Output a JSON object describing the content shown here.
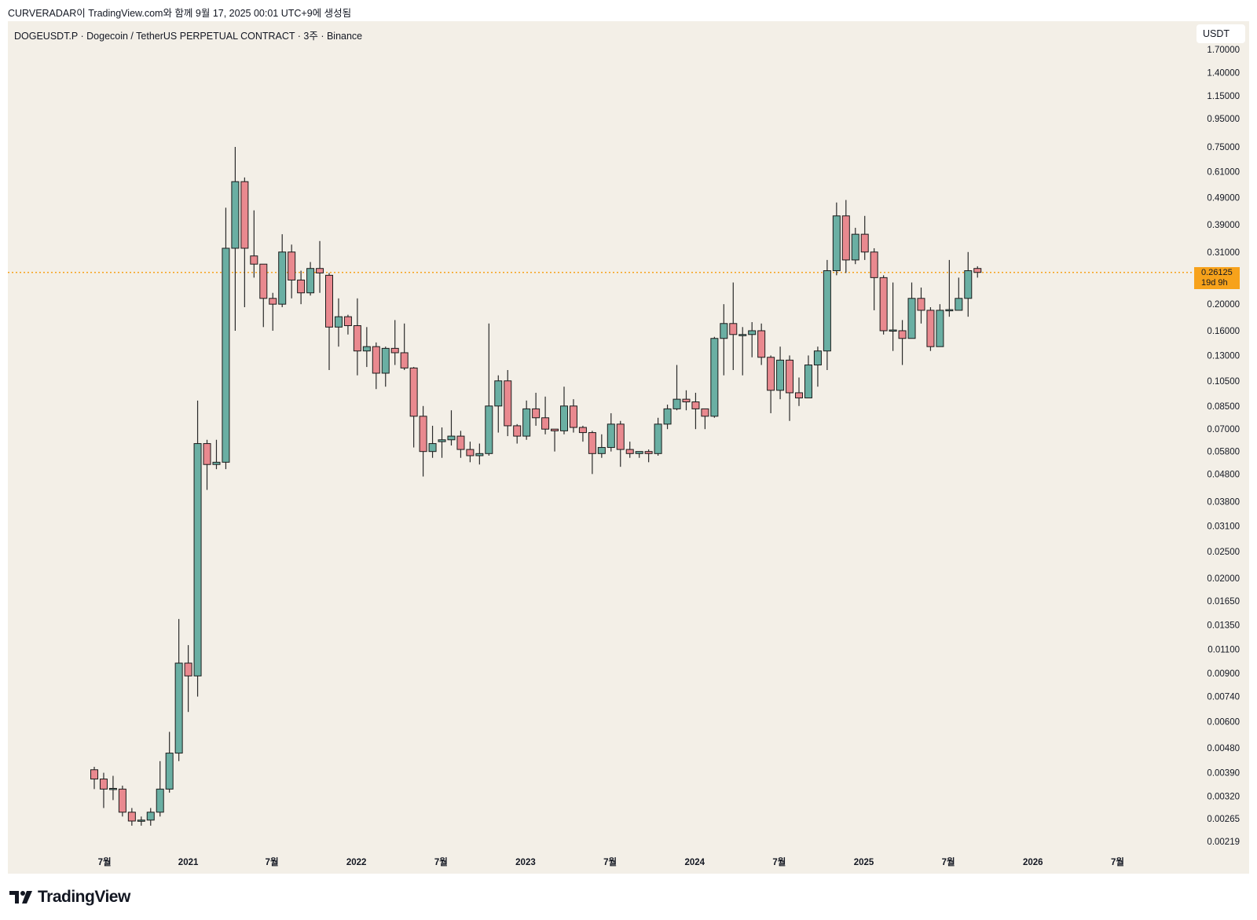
{
  "caption": "CURVERADAR이 TradingView.com와 함께 9월 17, 2025 00:01 UTC+9에 생성됨",
  "symbol_title": "DOGEUSDT.P · Dogecoin / TetherUS PERPETUAL CONTRACT · 3주 · Binance",
  "currency": "USDT",
  "last_price": "0.26125",
  "countdown": "19d 9h",
  "logo_text": "TradingView",
  "colors": {
    "up": "#6aafa3",
    "down": "#e9898f",
    "price_line": "#f7a21b",
    "background": "#f3efe7"
  },
  "chart_data": {
    "type": "candlestick",
    "scale": "log",
    "interval": "3주",
    "ylim": [
      0.00219,
      1.7
    ],
    "price_ticks": [
      "1.70000",
      "1.40000",
      "1.15000",
      "0.95000",
      "0.75000",
      "0.61000",
      "0.49000",
      "0.39000",
      "0.31000",
      "0.20000",
      "0.16000",
      "0.13000",
      "0.10500",
      "0.08500",
      "0.07000",
      "0.05800",
      "0.04800",
      "0.03800",
      "0.03100",
      "0.02500",
      "0.02000",
      "0.01650",
      "0.01350",
      "0.01100",
      "0.00900",
      "0.00740",
      "0.00600",
      "0.00480",
      "0.00390",
      "0.00320",
      "0.00265",
      "0.00219"
    ],
    "time_labels": [
      {
        "label": "7월",
        "bar": 1.1
      },
      {
        "label": "2021",
        "bar": 10.0
      },
      {
        "label": "7월",
        "bar": 18.9
      },
      {
        "label": "2022",
        "bar": 27.9
      },
      {
        "label": "7월",
        "bar": 36.9
      },
      {
        "label": "2023",
        "bar": 45.9
      },
      {
        "label": "7월",
        "bar": 54.9
      },
      {
        "label": "2024",
        "bar": 63.9
      },
      {
        "label": "7월",
        "bar": 72.9
      },
      {
        "label": "2025",
        "bar": 81.9
      },
      {
        "label": "7월",
        "bar": 90.9
      },
      {
        "label": "2026",
        "bar": 99.9
      },
      {
        "label": "7월",
        "bar": 108.9
      }
    ],
    "ohlc_fields": [
      "open",
      "high",
      "low",
      "close"
    ],
    "candles": [
      [
        0.004,
        0.0041,
        0.0034,
        0.0037
      ],
      [
        0.0037,
        0.0039,
        0.0029,
        0.0034
      ],
      [
        0.0034,
        0.0038,
        0.0031,
        0.00342
      ],
      [
        0.0034,
        0.0035,
        0.0027,
        0.0028
      ],
      [
        0.0028,
        0.0029,
        0.0025,
        0.0026
      ],
      [
        0.0026,
        0.0027,
        0.0025,
        0.00262
      ],
      [
        0.00262,
        0.0029,
        0.0025,
        0.0028
      ],
      [
        0.0028,
        0.0043,
        0.0027,
        0.0034
      ],
      [
        0.0034,
        0.0055,
        0.0033,
        0.0046
      ],
      [
        0.0046,
        0.0142,
        0.0043,
        0.0098
      ],
      [
        0.0098,
        0.0114,
        0.0065,
        0.0088
      ],
      [
        0.0088,
        0.089,
        0.0074,
        0.062
      ],
      [
        0.062,
        0.064,
        0.042,
        0.052
      ],
      [
        0.052,
        0.064,
        0.05,
        0.053
      ],
      [
        0.053,
        0.45,
        0.05,
        0.32
      ],
      [
        0.32,
        0.75,
        0.16,
        0.56
      ],
      [
        0.56,
        0.58,
        0.195,
        0.32
      ],
      [
        0.3,
        0.44,
        0.25,
        0.28
      ],
      [
        0.28,
        0.28,
        0.165,
        0.21
      ],
      [
        0.21,
        0.22,
        0.16,
        0.2
      ],
      [
        0.2,
        0.36,
        0.195,
        0.31
      ],
      [
        0.31,
        0.33,
        0.21,
        0.245
      ],
      [
        0.245,
        0.265,
        0.2,
        0.22
      ],
      [
        0.22,
        0.285,
        0.215,
        0.27
      ],
      [
        0.27,
        0.34,
        0.22,
        0.26
      ],
      [
        0.255,
        0.26,
        0.115,
        0.165
      ],
      [
        0.165,
        0.21,
        0.14,
        0.18
      ],
      [
        0.18,
        0.183,
        0.155,
        0.167
      ],
      [
        0.167,
        0.21,
        0.11,
        0.135
      ],
      [
        0.135,
        0.165,
        0.118,
        0.14
      ],
      [
        0.14,
        0.145,
        0.098,
        0.112
      ],
      [
        0.112,
        0.14,
        0.1,
        0.138
      ],
      [
        0.138,
        0.175,
        0.12,
        0.133
      ],
      [
        0.133,
        0.17,
        0.115,
        0.117
      ],
      [
        0.117,
        0.118,
        0.06,
        0.078
      ],
      [
        0.078,
        0.085,
        0.047,
        0.058
      ],
      [
        0.058,
        0.072,
        0.055,
        0.062
      ],
      [
        0.063,
        0.071,
        0.055,
        0.064
      ],
      [
        0.064,
        0.082,
        0.061,
        0.066
      ],
      [
        0.066,
        0.069,
        0.055,
        0.059
      ],
      [
        0.059,
        0.063,
        0.053,
        0.056
      ],
      [
        0.056,
        0.062,
        0.052,
        0.057
      ],
      [
        0.057,
        0.17,
        0.056,
        0.085
      ],
      [
        0.085,
        0.11,
        0.068,
        0.105
      ],
      [
        0.105,
        0.115,
        0.066,
        0.072
      ],
      [
        0.072,
        0.073,
        0.062,
        0.066
      ],
      [
        0.066,
        0.089,
        0.064,
        0.083
      ],
      [
        0.083,
        0.095,
        0.072,
        0.077
      ],
      [
        0.077,
        0.092,
        0.067,
        0.07
      ],
      [
        0.07,
        0.07,
        0.058,
        0.069
      ],
      [
        0.069,
        0.1,
        0.067,
        0.085
      ],
      [
        0.085,
        0.09,
        0.068,
        0.071
      ],
      [
        0.071,
        0.072,
        0.063,
        0.068
      ],
      [
        0.068,
        0.069,
        0.048,
        0.057
      ],
      [
        0.057,
        0.067,
        0.055,
        0.06
      ],
      [
        0.06,
        0.08,
        0.058,
        0.073
      ],
      [
        0.073,
        0.075,
        0.051,
        0.059
      ],
      [
        0.059,
        0.063,
        0.055,
        0.057
      ],
      [
        0.057,
        0.058,
        0.055,
        0.058
      ],
      [
        0.058,
        0.059,
        0.053,
        0.057
      ],
      [
        0.057,
        0.077,
        0.056,
        0.073
      ],
      [
        0.073,
        0.086,
        0.07,
        0.083
      ],
      [
        0.083,
        0.12,
        0.082,
        0.09
      ],
      [
        0.09,
        0.097,
        0.082,
        0.088
      ],
      [
        0.088,
        0.095,
        0.07,
        0.083
      ],
      [
        0.083,
        0.083,
        0.07,
        0.078
      ],
      [
        0.078,
        0.152,
        0.077,
        0.15
      ],
      [
        0.15,
        0.2,
        0.11,
        0.17
      ],
      [
        0.17,
        0.24,
        0.115,
        0.155
      ],
      [
        0.155,
        0.165,
        0.11,
        0.155
      ],
      [
        0.155,
        0.172,
        0.128,
        0.16
      ],
      [
        0.16,
        0.17,
        0.12,
        0.128
      ],
      [
        0.128,
        0.13,
        0.08,
        0.097
      ],
      [
        0.097,
        0.14,
        0.09,
        0.125
      ],
      [
        0.125,
        0.13,
        0.075,
        0.095
      ],
      [
        0.095,
        0.108,
        0.085,
        0.091
      ],
      [
        0.091,
        0.13,
        0.091,
        0.12
      ],
      [
        0.12,
        0.14,
        0.1,
        0.135
      ],
      [
        0.135,
        0.29,
        0.115,
        0.265
      ],
      [
        0.265,
        0.47,
        0.255,
        0.42
      ],
      [
        0.42,
        0.48,
        0.26,
        0.29
      ],
      [
        0.29,
        0.38,
        0.28,
        0.36
      ],
      [
        0.36,
        0.42,
        0.29,
        0.31
      ],
      [
        0.31,
        0.32,
        0.19,
        0.25
      ],
      [
        0.25,
        0.255,
        0.155,
        0.16
      ],
      [
        0.16,
        0.24,
        0.135,
        0.161
      ],
      [
        0.16,
        0.175,
        0.12,
        0.15
      ],
      [
        0.15,
        0.24,
        0.15,
        0.21
      ],
      [
        0.21,
        0.23,
        0.17,
        0.19
      ],
      [
        0.19,
        0.195,
        0.135,
        0.14
      ],
      [
        0.14,
        0.2,
        0.14,
        0.19
      ],
      [
        0.19,
        0.29,
        0.18,
        0.191
      ],
      [
        0.19,
        0.25,
        0.19,
        0.21
      ],
      [
        0.21,
        0.31,
        0.18,
        0.265
      ],
      [
        0.27,
        0.275,
        0.25,
        0.26125
      ]
    ],
    "last_value": 0.26125
  }
}
